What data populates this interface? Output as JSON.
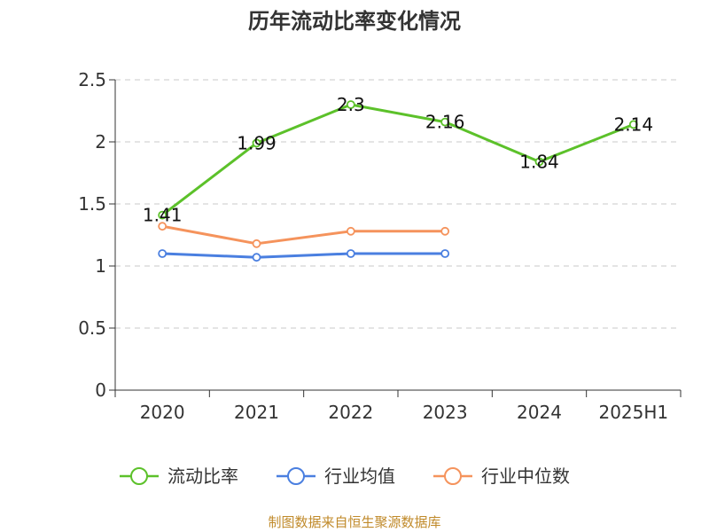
{
  "chart_data": {
    "type": "line",
    "title": "历年流动比率变化情况",
    "categories": [
      "2020",
      "2021",
      "2022",
      "2023",
      "2024",
      "2025H1"
    ],
    "ylim": [
      0,
      2.5
    ],
    "yticks": [
      "0",
      "0.5",
      "1",
      "1.5",
      "2",
      "2.5"
    ],
    "ytick_values": [
      0,
      0.5,
      1,
      1.5,
      2,
      2.5
    ],
    "grid": true,
    "legend_position": "bottom",
    "series": [
      {
        "name": "流动比率",
        "color": "#5cc12a",
        "values": [
          1.41,
          1.99,
          2.3,
          2.16,
          1.84,
          2.14
        ],
        "labels": [
          "1.41",
          "1.99",
          "2.3",
          "2.16",
          "1.84",
          "2.14"
        ]
      },
      {
        "name": "行业均值",
        "color": "#4a7fe0",
        "values": [
          1.1,
          1.07,
          1.1,
          1.1,
          null,
          null
        ]
      },
      {
        "name": "行业中位数",
        "color": "#f5935c",
        "values": [
          1.32,
          1.18,
          1.28,
          1.28,
          null,
          null
        ]
      }
    ]
  },
  "source": "制图数据来自恒生聚源数据库"
}
